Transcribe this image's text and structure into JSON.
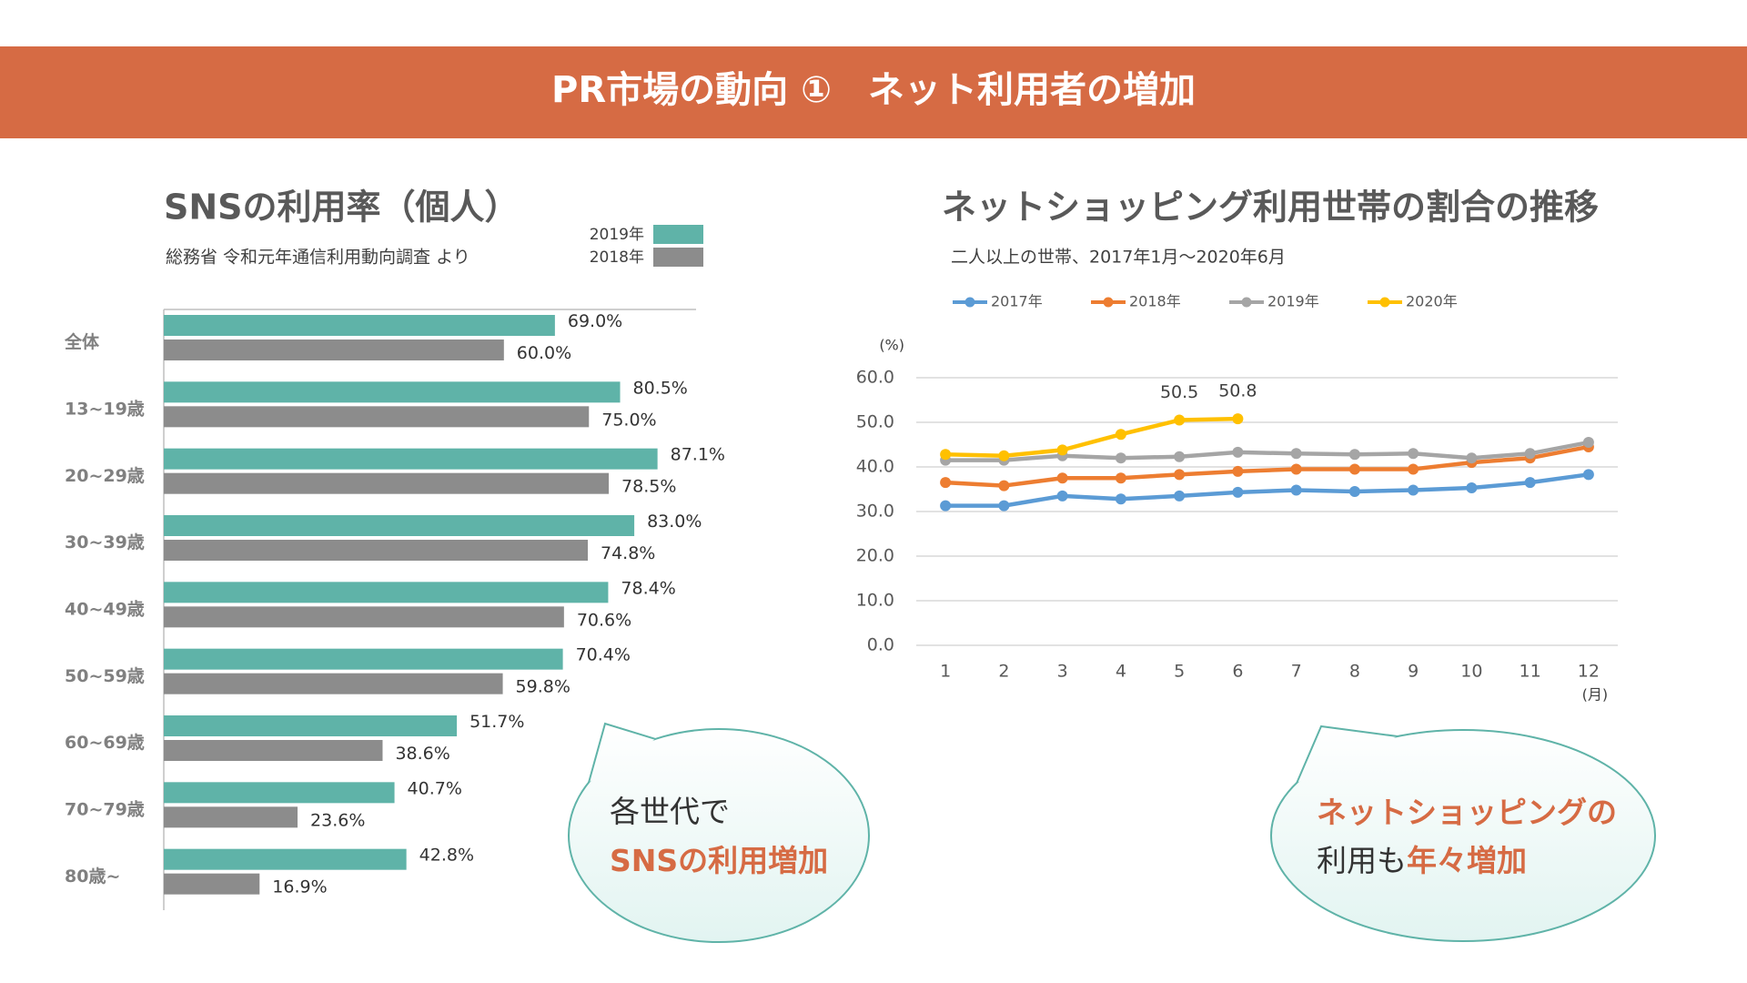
{
  "header": {
    "title": "PR市場の動向 ①　ネット利用者の増加"
  },
  "chart_data": [
    {
      "type": "bar",
      "orientation": "horizontal",
      "title": "SNSの利用率（個人）",
      "subtitle": "総務省 令和元年通信利用動向調査 より",
      "categories": [
        "全体",
        "13~19歳",
        "20~29歳",
        "30~39歳",
        "40~49歳",
        "50~59歳",
        "60~69歳",
        "70~79歳",
        "80歳~"
      ],
      "series": [
        {
          "name": "2019年",
          "color": "#5fb3a8",
          "values": [
            69.0,
            80.5,
            87.1,
            83.0,
            78.4,
            70.4,
            51.7,
            40.7,
            42.8
          ],
          "value_labels": [
            "69.0%",
            "80.5%",
            "87.1%",
            "83.0%",
            "78.4%",
            "70.4%",
            "51.7%",
            "40.7%",
            "42.8%"
          ]
        },
        {
          "name": "2018年",
          "color": "#8c8c8c",
          "values": [
            60.0,
            75.0,
            78.5,
            74.8,
            70.6,
            59.8,
            38.6,
            23.6,
            16.9
          ],
          "value_labels": [
            "60.0%",
            "75.0%",
            "78.5%",
            "74.8%",
            "70.6%",
            "59.8%",
            "38.6%",
            "23.6%",
            "16.9%"
          ]
        }
      ],
      "xlim": [
        0,
        100
      ],
      "legend": "top-right"
    },
    {
      "type": "line",
      "title": "ネットショッピング利用世帯の割合の推移",
      "subtitle": "二人以上の世帯、2017年1月～2020年6月",
      "categories": [
        "1",
        "2",
        "3",
        "4",
        "5",
        "6",
        "7",
        "8",
        "9",
        "10",
        "11",
        "12"
      ],
      "x_label": "(月)",
      "y_label": "(%)",
      "ylim": [
        0,
        60
      ],
      "yticks": [
        {
          "value": 0,
          "label": "0.0"
        },
        {
          "value": 10,
          "label": "10.0"
        },
        {
          "value": 20,
          "label": "20.0"
        },
        {
          "value": 30,
          "label": "30.0"
        },
        {
          "value": 40,
          "label": "40.0"
        },
        {
          "value": 50,
          "label": "50.0"
        },
        {
          "value": 60,
          "label": "60.0"
        }
      ],
      "grid": true,
      "legend": "top",
      "series": [
        {
          "name": "2017年",
          "color": "#5b9bd5",
          "values": [
            31.3,
            31.3,
            33.5,
            32.8,
            33.5,
            34.3,
            34.8,
            34.5,
            34.8,
            35.3,
            36.5,
            38.3
          ]
        },
        {
          "name": "2018年",
          "color": "#ed7d31",
          "values": [
            36.5,
            35.8,
            37.5,
            37.5,
            38.3,
            39.0,
            39.5,
            39.5,
            39.5,
            41.0,
            42.0,
            44.5
          ]
        },
        {
          "name": "2019年",
          "color": "#a5a5a5",
          "values": [
            41.5,
            41.5,
            42.5,
            42.0,
            42.3,
            43.3,
            43.0,
            42.8,
            43.0,
            42.0,
            43.0,
            45.5
          ]
        },
        {
          "name": "2020年",
          "color": "#ffc000",
          "values": [
            42.8,
            42.5,
            43.8,
            47.3,
            50.5,
            50.8,
            null,
            null,
            null,
            null,
            null,
            null
          ],
          "value_labels": [
            null,
            null,
            null,
            null,
            "50.5",
            "50.8",
            null,
            null,
            null,
            null,
            null,
            null
          ]
        }
      ]
    }
  ],
  "callouts": [
    {
      "lines": [
        [
          {
            "text": "各世代で"
          }
        ],
        [
          {
            "text": "SNSの利用増加",
            "color": "#d66b44"
          }
        ]
      ]
    },
    {
      "lines": [
        [
          {
            "text": "ネットショッピングの",
            "color": "#d66b44"
          }
        ],
        [
          {
            "text": "利用も"
          },
          {
            "text": "年々増加",
            "color": "#d66b44"
          }
        ]
      ]
    }
  ]
}
